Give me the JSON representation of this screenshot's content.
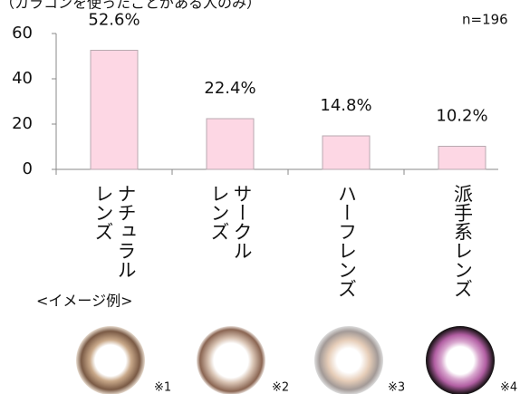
{
  "chart_data": {
    "type": "bar",
    "subtitle": "（カラコンを使ったことがある人のみ）",
    "annotation": "n=196",
    "categories": [
      "ナチュラル\nレンズ",
      "サークル\nレンズ",
      "ハーフレンズ",
      "派手系レンズ"
    ],
    "values": [
      52.6,
      22.4,
      14.8,
      10.2
    ],
    "value_labels": [
      "52.6%",
      "22.4%",
      "14.8%",
      "10.2%"
    ],
    "color": "#fdd7e4",
    "ylim": [
      0,
      60
    ],
    "yticks": [
      0,
      20,
      40,
      60
    ],
    "grid": false,
    "image_caption": "<イメージ例>",
    "image_notes": [
      "※1",
      "※2",
      "※3",
      "※4"
    ]
  }
}
